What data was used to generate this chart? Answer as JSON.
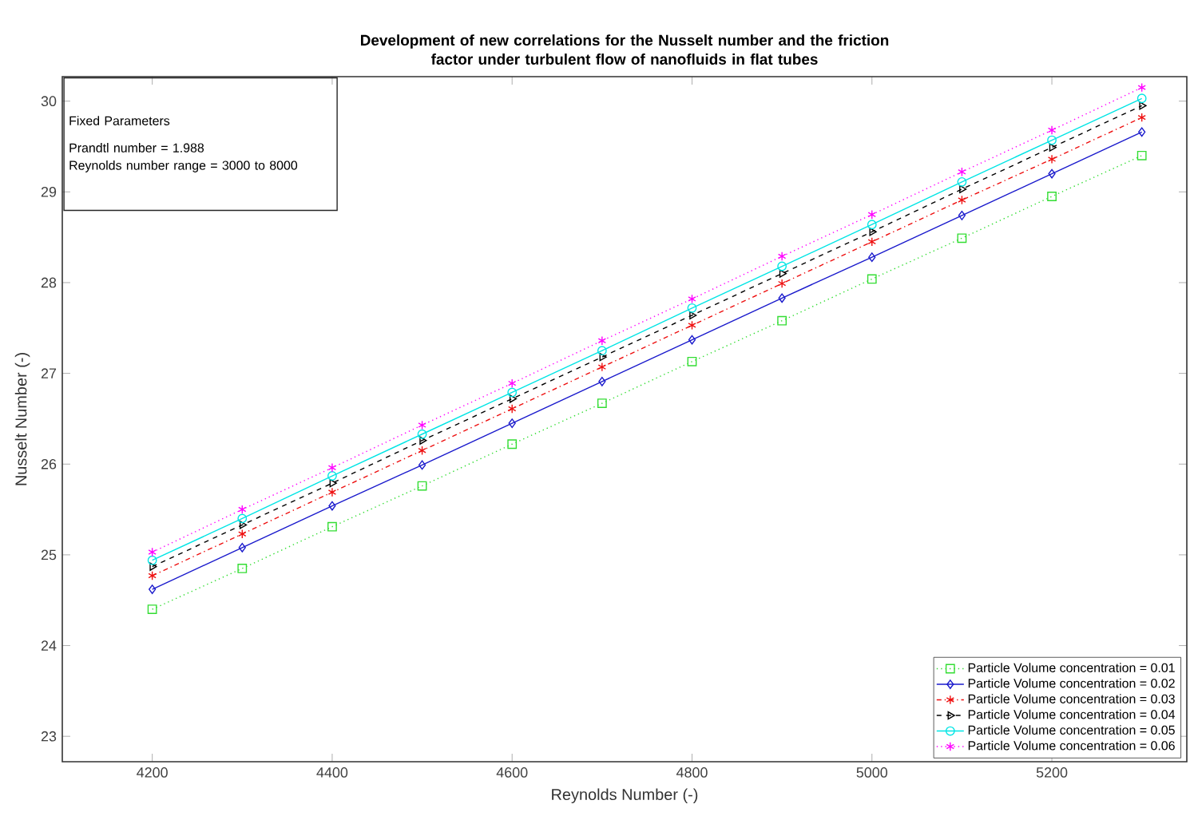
{
  "chart_data": {
    "type": "line",
    "title": "Development of new correlations for the Nusselt number and the friction\nfactor under turbulent flow of nanofluids in flat tubes",
    "xlabel": "Reynolds Number (-)",
    "ylabel": "Nusselt Number (-)",
    "x": [
      4200,
      4300,
      4400,
      4500,
      4600,
      4700,
      4800,
      4900,
      5000,
      5100,
      5200,
      5300
    ],
    "series": [
      {
        "name": "Particle Volume concentration = 0.01",
        "color": "#33dd33",
        "marker": "square",
        "line_style": "dotted",
        "values": [
          24.4,
          24.85,
          25.31,
          25.76,
          26.22,
          26.67,
          27.13,
          27.58,
          28.04,
          28.49,
          28.95,
          29.4
        ]
      },
      {
        "name": "Particle Volume concentration = 0.02",
        "color": "#1a1acc",
        "marker": "diamond",
        "line_style": "solid",
        "values": [
          24.62,
          25.08,
          25.54,
          25.99,
          26.45,
          26.91,
          27.37,
          27.83,
          28.28,
          28.74,
          29.2,
          29.66
        ]
      },
      {
        "name": "Particle Volume concentration = 0.03",
        "color": "#ee1111",
        "marker": "cross",
        "line_style": "dashdot",
        "values": [
          24.77,
          25.23,
          25.69,
          26.15,
          26.61,
          27.07,
          27.53,
          27.99,
          28.45,
          28.91,
          29.36,
          29.82
        ]
      },
      {
        "name": "Particle Volume concentration = 0.04",
        "color": "#000000",
        "marker": "triangle",
        "line_style": "dashed",
        "values": [
          24.87,
          25.33,
          25.79,
          26.26,
          26.72,
          27.18,
          27.64,
          28.1,
          28.56,
          29.03,
          29.49,
          29.95
        ]
      },
      {
        "name": "Particle Volume concentration = 0.05",
        "color": "#00e5e5",
        "marker": "circle",
        "line_style": "solid",
        "values": [
          24.94,
          25.4,
          25.87,
          26.33,
          26.79,
          27.25,
          27.72,
          28.18,
          28.64,
          29.11,
          29.57,
          30.03
        ]
      },
      {
        "name": "Particle Volume concentration = 0.06",
        "color": "#ff00ff",
        "marker": "cross",
        "line_style": "dotted",
        "values": [
          25.03,
          25.5,
          25.96,
          26.43,
          26.89,
          27.36,
          27.82,
          28.29,
          28.75,
          29.22,
          29.68,
          30.15
        ]
      }
    ],
    "xlim": [
      4100,
      5350
    ],
    "ylim": [
      22.72,
      30.27
    ],
    "xticks": [
      4200,
      4400,
      4600,
      4800,
      5000,
      5200
    ],
    "yticks": [
      23,
      24,
      25,
      26,
      27,
      28,
      29,
      30
    ],
    "annotations": [
      "Fixed Parameters",
      "Prandtl number = 1.988",
      "Reynolds number range = 3000 to 8000"
    ],
    "grid": false,
    "legend": "bottom right"
  }
}
